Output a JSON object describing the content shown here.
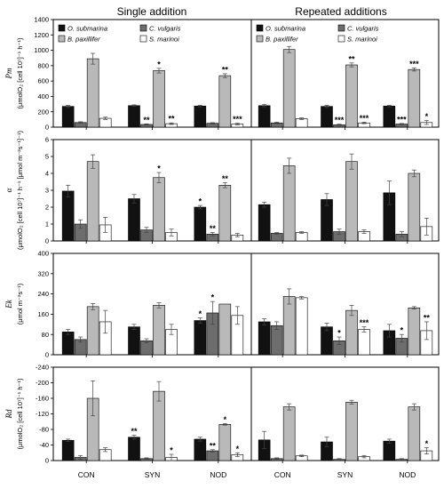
{
  "chart_data": {
    "type": "bar",
    "column_titles": [
      "Single addition",
      "Repeated additions"
    ],
    "categories": [
      "CON",
      "SYN",
      "NOD"
    ],
    "legend": {
      "placement": "top-left",
      "entries": [
        "O. submarina",
        "C. vulgaris",
        "B. paxillifer",
        "S. marinoi"
      ]
    },
    "colors": [
      "#111111",
      "#6d6d6d",
      "#b9b9b9",
      "#ffffff"
    ],
    "rows": [
      {
        "symbol": "Pm",
        "unit": "(μmolO₂ [cell 10⁷]⁻¹ h⁻¹)",
        "ylim": [
          0,
          1400
        ],
        "yticks": [
          "0",
          "200",
          "400",
          "600",
          "800",
          "1000",
          "1200",
          "1400"
        ],
        "panels": [
          {
            "values": [
              [
                270,
                280,
                275
              ],
              [
                60,
                35,
                50
              ],
              [
                890,
                735,
                670
              ],
              [
                115,
                45,
                40
              ]
            ],
            "errors": [
              [
                15,
                10,
                10
              ],
              [
                10,
                8,
                8
              ],
              [
                70,
                30,
                25
              ],
              [
                15,
                10,
                10
              ]
            ],
            "stars": [
              [
                "",
                "",
                ""
              ],
              [
                "",
                "**",
                ""
              ],
              [
                "",
                "*",
                "**"
              ],
              [
                "",
                "**",
                "***"
              ]
            ]
          },
          {
            "values": [
              [
                280,
                270,
                275
              ],
              [
                55,
                30,
                40
              ],
              [
                1010,
                810,
                750
              ],
              [
                110,
                55,
                60
              ]
            ],
            "errors": [
              [
                15,
                15,
                10
              ],
              [
                10,
                8,
                8
              ],
              [
                40,
                25,
                20
              ],
              [
                10,
                10,
                25
              ]
            ],
            "stars": [
              [
                "",
                "",
                ""
              ],
              [
                "",
                "***",
                "***"
              ],
              [
                "",
                "**",
                "***"
              ],
              [
                "",
                "***",
                "*"
              ]
            ]
          }
        ]
      },
      {
        "symbol": "α",
        "unit": "(μmolO₂ [cell 10⁷]⁻¹ h⁻¹ [μmol m⁻²s⁻¹]⁻¹)",
        "ylim": [
          0,
          6
        ],
        "yticks": [
          "0",
          "1",
          "2",
          "3",
          "4",
          "5",
          "6"
        ],
        "panels": [
          {
            "values": [
              [
                2.95,
                2.5,
                2.0
              ],
              [
                1.0,
                0.65,
                0.4
              ],
              [
                4.7,
                3.75,
                3.3
              ],
              [
                0.95,
                0.5,
                0.35
              ]
            ],
            "errors": [
              [
                0.35,
                0.25,
                0.1
              ],
              [
                0.25,
                0.15,
                0.1
              ],
              [
                0.4,
                0.3,
                0.15
              ],
              [
                0.45,
                0.2,
                0.1
              ]
            ],
            "stars": [
              [
                "",
                "",
                "*"
              ],
              [
                "",
                "",
                "**"
              ],
              [
                "",
                "*",
                "**"
              ],
              [
                "",
                "",
                ""
              ]
            ]
          },
          {
            "values": [
              [
                2.15,
                2.45,
                2.85
              ],
              [
                0.45,
                0.55,
                0.4
              ],
              [
                4.45,
                4.7,
                4.0
              ],
              [
                0.5,
                0.55,
                0.85
              ]
            ],
            "errors": [
              [
                0.15,
                0.35,
                0.7
              ],
              [
                0.05,
                0.15,
                0.15
              ],
              [
                0.45,
                0.45,
                0.2
              ],
              [
                0.05,
                0.1,
                0.5
              ]
            ],
            "stars": [
              [
                "",
                "",
                ""
              ],
              [
                "",
                "",
                ""
              ],
              [
                "",
                "",
                ""
              ],
              [
                "",
                "",
                ""
              ]
            ]
          }
        ]
      },
      {
        "symbol": "Ek",
        "unit": "(μmol m⁻²s⁻¹)",
        "ylim": [
          0,
          400
        ],
        "yticks": [
          "0",
          "80",
          "160",
          "240",
          "320",
          "400"
        ],
        "panels": [
          {
            "values": [
              [
                90,
                110,
                135
              ],
              [
                60,
                55,
                165
              ],
              [
                190,
                195,
                200
              ],
              [
                130,
                100,
                155
              ]
            ],
            "errors": [
              [
                10,
                10,
                10
              ],
              [
                10,
                8,
                45
              ],
              [
                12,
                10,
                0
              ],
              [
                45,
                20,
                35
              ]
            ],
            "stars": [
              [
                "",
                "",
                "*"
              ],
              [
                "",
                "",
                "*"
              ],
              [
                "",
                "",
                ""
              ],
              [
                "",
                "",
                ""
              ]
            ]
          },
          {
            "values": [
              [
                130,
                110,
                95
              ],
              [
                115,
                55,
                65
              ],
              [
                230,
                175,
                185
              ],
              [
                225,
                100,
                95
              ]
            ],
            "errors": [
              [
                12,
                15,
                25
              ],
              [
                15,
                15,
                15
              ],
              [
                30,
                20,
                5
              ],
              [
                5,
                10,
                35
              ]
            ],
            "stars": [
              [
                "",
                "",
                ""
              ],
              [
                "",
                "*",
                "*"
              ],
              [
                "",
                "",
                ""
              ],
              [
                "",
                "***",
                "**"
              ]
            ]
          }
        ]
      },
      {
        "symbol": "Rd",
        "unit": "(μmolO₂ [cell 10⁷]⁻¹ h⁻¹)",
        "ylim": [
          0,
          -240
        ],
        "yticks": [
          "0",
          "-40",
          "-80",
          "-120",
          "-160",
          "-200",
          "-240"
        ],
        "panels": [
          {
            "values": [
              [
                -52,
                -60,
                -55
              ],
              [
                -8,
                -5,
                -25
              ],
              [
                -160,
                -178,
                -93
              ],
              [
                -28,
                -8,
                -15
              ]
            ],
            "errors": [
              [
                3,
                5,
                5
              ],
              [
                5,
                2,
                3
              ],
              [
                45,
                25,
                2
              ],
              [
                5,
                8,
                5
              ]
            ],
            "stars": [
              [
                "",
                "**",
                ""
              ],
              [
                "",
                "",
                "**"
              ],
              [
                "",
                "",
                "*"
              ],
              [
                "",
                "*",
                "*"
              ]
            ]
          },
          {
            "values": [
              [
                -53,
                -48,
                -50
              ],
              [
                -5,
                -3,
                -3
              ],
              [
                -138,
                -150,
                -138
              ],
              [
                -12,
                -10,
                -25
              ]
            ],
            "errors": [
              [
                22,
                12,
                5
              ],
              [
                2,
                2,
                2
              ],
              [
                8,
                5,
                8
              ],
              [
                2,
                3,
                8
              ]
            ],
            "stars": [
              [
                "",
                "",
                ""
              ],
              [
                "",
                "",
                ""
              ],
              [
                "",
                "",
                ""
              ],
              [
                "",
                "",
                "*"
              ]
            ]
          }
        ]
      }
    ]
  }
}
